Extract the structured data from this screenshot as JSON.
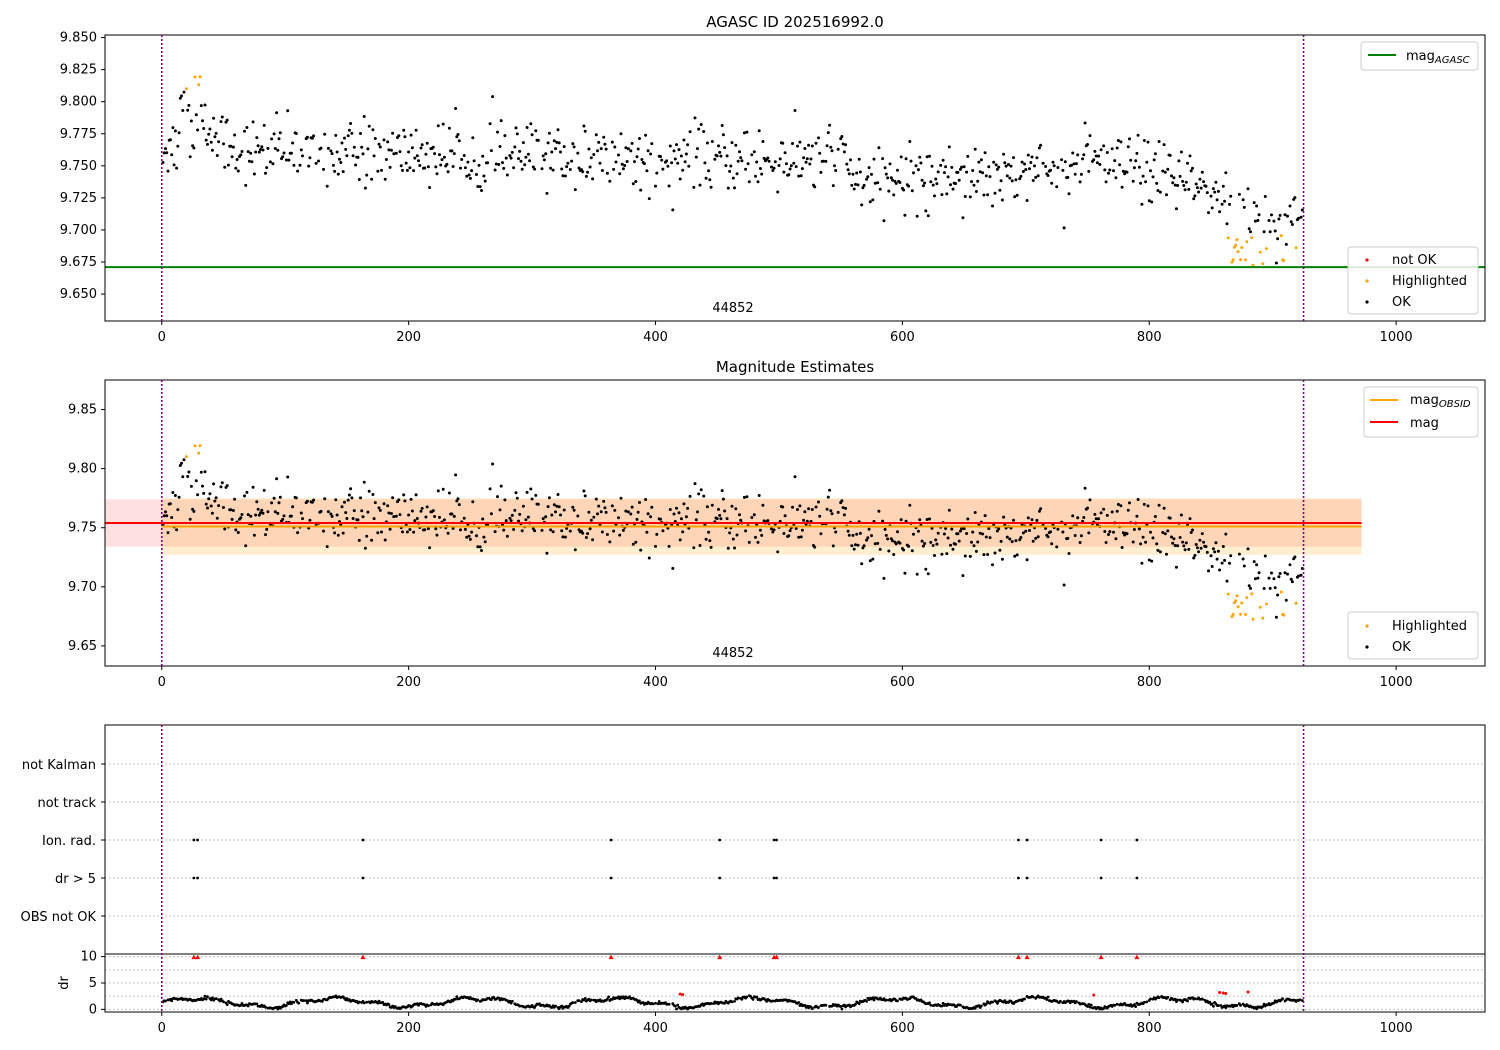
{
  "figure": {
    "title_top": "AGASC ID 202516992.0",
    "title_mid": "Magnitude Estimates",
    "obsid_label": "44852"
  },
  "colors": {
    "ok": "#000000",
    "highlighted": "#ffa500",
    "not_ok": "#ff0000",
    "mag_agasc": "#008000",
    "mag": "#ff0000",
    "mag_obsid": "#ffa500",
    "obs_boundary": "#800080"
  },
  "chart_data": [
    {
      "type": "scatter",
      "name": "top",
      "title": "AGASC ID 202516992.0",
      "xlim": [
        -46,
        1072
      ],
      "ylim": [
        9.629,
        9.852
      ],
      "yticks": [
        9.65,
        9.675,
        9.7,
        9.725,
        9.75,
        9.775,
        9.8,
        9.825,
        9.85
      ],
      "ytick_labels": [
        "9.650",
        "9.675",
        "9.700",
        "9.725",
        "9.750",
        "9.775",
        "9.800",
        "9.825",
        "9.850"
      ],
      "xticks": [
        0,
        200,
        400,
        600,
        800,
        1000
      ],
      "xtick_labels": [
        "0",
        "200",
        "400",
        "600",
        "800",
        "1000"
      ],
      "grid": false,
      "mag_agasc": 9.671,
      "obs_boundaries": [
        0,
        925
      ],
      "obsid_text_x": 462,
      "legend_upper": {
        "position": "top-right",
        "entries": [
          "mag",
          "AGASC"
        ]
      },
      "legend_lower": {
        "position": "lower-right",
        "entries": [
          "not OK",
          "Highlighted",
          "OK"
        ]
      }
    },
    {
      "type": "scatter",
      "name": "middle",
      "title": "Magnitude Estimates",
      "xlim": [
        -46,
        1072
      ],
      "ylim": [
        9.633,
        9.875
      ],
      "yticks": [
        9.65,
        9.7,
        9.75,
        9.8,
        9.85
      ],
      "ytick_labels": [
        "9.65",
        "9.70",
        "9.75",
        "9.80",
        "9.85"
      ],
      "xticks": [
        0,
        200,
        400,
        600,
        800,
        1000
      ],
      "xtick_labels": [
        "0",
        "200",
        "400",
        "600",
        "800",
        "1000"
      ],
      "grid": false,
      "mag": 9.754,
      "mag_band": [
        9.734,
        9.774
      ],
      "mag_obsid": 9.751,
      "mag_obsid_band": [
        9.727,
        9.775
      ],
      "bands_x_range": [
        -46,
        972
      ],
      "obs_boundaries": [
        0,
        925
      ],
      "legend_upper": {
        "position": "top-right",
        "entries": [
          "mag",
          "OBSID",
          "mag"
        ]
      },
      "legend_lower": {
        "position": "lower-right",
        "entries": [
          "Highlighted",
          "OK"
        ]
      }
    },
    {
      "type": "scatter",
      "name": "flags",
      "categories": [
        "not Kalman",
        "not track",
        "Ion. rad.",
        "dr > 5",
        "OBS not OK"
      ],
      "ion_rad_x": [
        26,
        29,
        163,
        364,
        452,
        496,
        498,
        694,
        701,
        761,
        790
      ],
      "dr5_x": [
        26,
        29,
        163,
        364,
        452,
        496,
        498,
        694,
        701,
        761,
        790
      ],
      "not_kalman_x": [],
      "not_track_x": [],
      "obs_not_ok_x": [],
      "grid": "horizontal-dotted"
    },
    {
      "type": "scatter",
      "name": "dr",
      "ylabel": "dr",
      "ylim": [
        -0.5,
        10.5
      ],
      "yticks": [
        0,
        5,
        10
      ],
      "ytick_labels": [
        "0",
        "5",
        "10"
      ],
      "xticks": [
        0,
        200,
        400,
        600,
        800,
        1000
      ],
      "xtick_labels": [
        "0",
        "200",
        "400",
        "600",
        "800",
        "1000"
      ],
      "red_markers_at_10_x": [
        26,
        29,
        163,
        364,
        452,
        496,
        498,
        694,
        701,
        761,
        790
      ],
      "red_points": [
        [
          420,
          2.9
        ],
        [
          422,
          2.8
        ],
        [
          755,
          2.7
        ],
        [
          857,
          3.2
        ],
        [
          860,
          3.1
        ],
        [
          862,
          3.0
        ],
        [
          880,
          3.3
        ]
      ]
    }
  ]
}
